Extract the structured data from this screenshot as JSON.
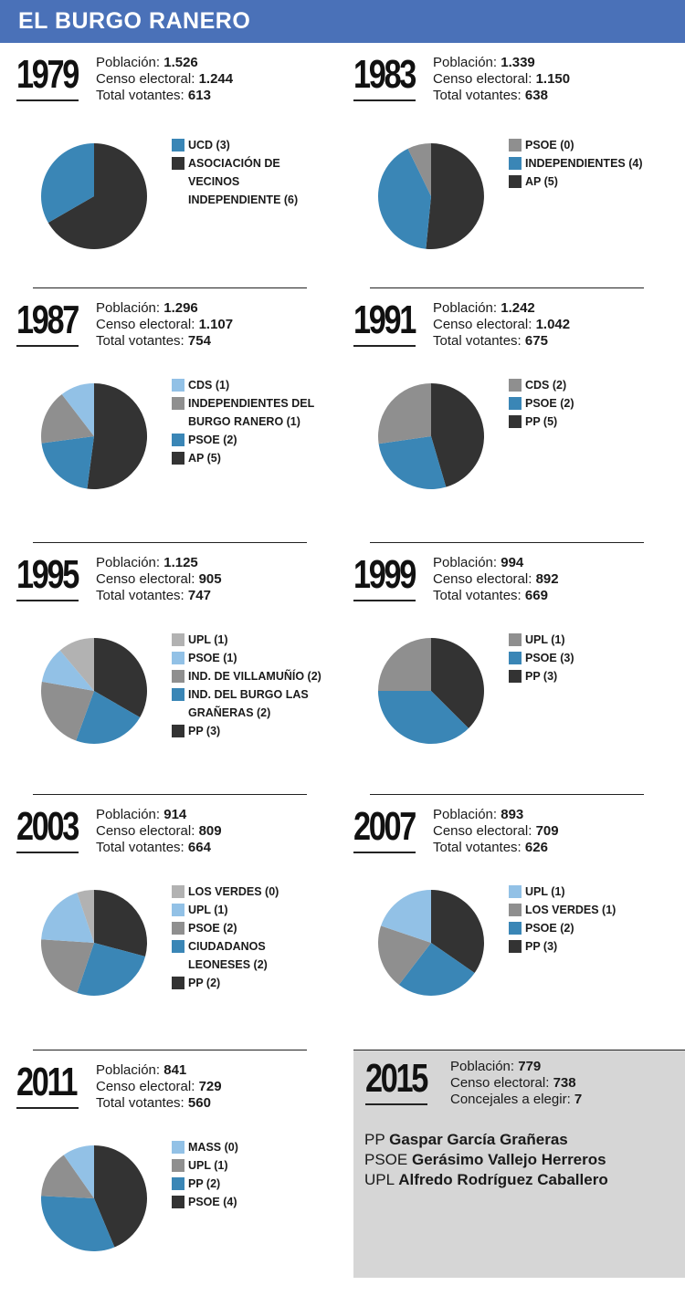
{
  "header": {
    "title": "EL BURGO RANERO"
  },
  "labels": {
    "poblacion": "Población:",
    "censo": "Censo electoral:",
    "votantes": "Total votantes:",
    "concejales": "Concejales a elegir:"
  },
  "colors": {
    "dark": "#333333",
    "blue": "#3a86b6",
    "gray": "#8f8f8f",
    "light_gray": "#b2b2b2",
    "light_blue": "#92c1e6",
    "header": "#4a71b8",
    "panel": "#d6d6d6"
  },
  "chart_data": [
    {
      "type": "pie",
      "year": "1979",
      "poblacion": "1.526",
      "censo": "1.244",
      "votantes": "613",
      "legend": [
        {
          "label": "UCD (3)",
          "color": "#3a86b6"
        },
        {
          "label": "ASOCIACIÓN DE VECINOS\n INDEPENDIENTE (6)",
          "color": "#333333"
        }
      ],
      "slices": [
        {
          "label": "ASOCIACIÓN DE VECINOS INDEPENDIENTE",
          "value": 6,
          "color": "#333333"
        },
        {
          "label": "UCD",
          "value": 3,
          "color": "#3a86b6"
        }
      ]
    },
    {
      "type": "pie",
      "year": "1983",
      "poblacion": "1.339",
      "censo": "1.150",
      "votantes": "638",
      "legend": [
        {
          "label": "PSOE (0)",
          "color": "#8f8f8f"
        },
        {
          "label": "INDEPENDIENTES (4)",
          "color": "#3a86b6"
        },
        {
          "label": "AP (5)",
          "color": "#333333"
        }
      ],
      "slices": [
        {
          "label": "AP",
          "value": 5,
          "color": "#333333"
        },
        {
          "label": "INDEPENDIENTES",
          "value": 4,
          "color": "#3a86b6"
        },
        {
          "label": "PSOE",
          "value": 0.7,
          "color": "#8f8f8f"
        }
      ]
    },
    {
      "type": "pie",
      "year": "1987",
      "poblacion": "1.296",
      "censo": "1.107",
      "votantes": "754",
      "legend": [
        {
          "label": "CDS (1)",
          "color": "#92c1e6"
        },
        {
          "label": "INDEPENDIENTES DEL\n BURGO RANERO (1)",
          "color": "#8f8f8f"
        },
        {
          "label": "PSOE (2)",
          "color": "#3a86b6"
        },
        {
          "label": "AP (5)",
          "color": "#333333"
        }
      ],
      "slices": [
        {
          "label": "AP",
          "value": 5,
          "color": "#333333"
        },
        {
          "label": "PSOE",
          "value": 2,
          "color": "#3a86b6"
        },
        {
          "label": "INDEPENDIENTES DEL BURGO RANERO",
          "value": 1.6,
          "color": "#8f8f8f"
        },
        {
          "label": "CDS",
          "value": 1,
          "color": "#92c1e6"
        }
      ]
    },
    {
      "type": "pie",
      "year": "1991",
      "poblacion": "1.242",
      "censo": "1.042",
      "votantes": "675",
      "legend": [
        {
          "label": "CDS (2)",
          "color": "#8f8f8f"
        },
        {
          "label": "PSOE (2)",
          "color": "#3a86b6"
        },
        {
          "label": "PP (5)",
          "color": "#333333"
        }
      ],
      "slices": [
        {
          "label": "PP",
          "value": 5,
          "color": "#333333"
        },
        {
          "label": "PSOE",
          "value": 3,
          "color": "#3a86b6"
        },
        {
          "label": "CDS",
          "value": 3,
          "color": "#8f8f8f"
        }
      ]
    },
    {
      "type": "pie",
      "year": "1995",
      "poblacion": "1.125",
      "censo": "905",
      "votantes": "747",
      "legend": [
        {
          "label": "UPL (1)",
          "color": "#b2b2b2"
        },
        {
          "label": "PSOE (1)",
          "color": "#92c1e6"
        },
        {
          "label": "IND. DE VILLAMUÑÍO (2)",
          "color": "#8f8f8f"
        },
        {
          "label": "IND. DEL BURGO LAS GRAÑERAS (2)",
          "color": "#3a86b6"
        },
        {
          "label": "PP (3)",
          "color": "#333333"
        }
      ],
      "slices": [
        {
          "label": "PP",
          "value": 3,
          "color": "#333333"
        },
        {
          "label": "IND. DEL BURGO LAS GRAÑERAS",
          "value": 2,
          "color": "#3a86b6"
        },
        {
          "label": "IND. DE VILLAMUÑÍO",
          "value": 2,
          "color": "#8f8f8f"
        },
        {
          "label": "PSOE",
          "value": 1,
          "color": "#92c1e6"
        },
        {
          "label": "UPL",
          "value": 1,
          "color": "#b2b2b2"
        }
      ]
    },
    {
      "type": "pie",
      "year": "1999",
      "poblacion": "994",
      "censo": "892",
      "votantes": "669",
      "legend": [
        {
          "label": "UPL (1)",
          "color": "#8f8f8f"
        },
        {
          "label": "PSOE (3)",
          "color": "#3a86b6"
        },
        {
          "label": "PP (3)",
          "color": "#333333"
        }
      ],
      "slices": [
        {
          "label": "PP",
          "value": 3,
          "color": "#333333"
        },
        {
          "label": "PSOE",
          "value": 3,
          "color": "#3a86b6"
        },
        {
          "label": "UPL",
          "value": 2,
          "color": "#8f8f8f"
        }
      ]
    },
    {
      "type": "pie",
      "year": "2003",
      "poblacion": "914",
      "censo": "809",
      "votantes": "664",
      "legend": [
        {
          "label": "LOS VERDES (0)",
          "color": "#b2b2b2"
        },
        {
          "label": "UPL (1)",
          "color": "#92c1e6"
        },
        {
          "label": "PSOE (2)",
          "color": "#8f8f8f"
        },
        {
          "label": "CIUDADANOS LEONESES (2)",
          "color": "#3a86b6"
        },
        {
          "label": "PP (2)",
          "color": "#333333"
        }
      ],
      "slices": [
        {
          "label": "PP",
          "value": 2.8,
          "color": "#333333"
        },
        {
          "label": "CIUDADANOS LEONESES",
          "value": 2.5,
          "color": "#3a86b6"
        },
        {
          "label": "PSOE",
          "value": 2,
          "color": "#8f8f8f"
        },
        {
          "label": "UPL",
          "value": 1.8,
          "color": "#92c1e6"
        },
        {
          "label": "LOS VERDES",
          "value": 0.5,
          "color": "#b2b2b2"
        }
      ]
    },
    {
      "type": "pie",
      "year": "2007",
      "poblacion": "893",
      "censo": "709",
      "votantes": "626",
      "legend": [
        {
          "label": "UPL (1)",
          "color": "#92c1e6"
        },
        {
          "label": "LOS VERDES (1)",
          "color": "#8f8f8f"
        },
        {
          "label": "PSOE (2)",
          "color": "#3a86b6"
        },
        {
          "label": "PP (3)",
          "color": "#333333"
        }
      ],
      "slices": [
        {
          "label": "PP",
          "value": 3.5,
          "color": "#333333"
        },
        {
          "label": "PSOE",
          "value": 2.6,
          "color": "#3a86b6"
        },
        {
          "label": "LOS VERDES",
          "value": 2,
          "color": "#8f8f8f"
        },
        {
          "label": "UPL",
          "value": 2,
          "color": "#92c1e6"
        }
      ]
    },
    {
      "type": "pie",
      "year": "2011",
      "poblacion": "841",
      "censo": "729",
      "votantes": "560",
      "legend": [
        {
          "label": "MASS (0)",
          "color": "#92c1e6"
        },
        {
          "label": "UPL (1)",
          "color": "#8f8f8f"
        },
        {
          "label": "PP (2)",
          "color": "#3a86b6"
        },
        {
          "label": "PSOE (4)",
          "color": "#333333"
        }
      ],
      "slices": [
        {
          "label": "PSOE",
          "value": 4.5,
          "color": "#333333"
        },
        {
          "label": "PP",
          "value": 3.3,
          "color": "#3a86b6"
        },
        {
          "label": "UPL",
          "value": 1.5,
          "color": "#8f8f8f"
        },
        {
          "label": "MASS",
          "value": 1,
          "color": "#92c1e6"
        }
      ]
    }
  ],
  "box_2015": {
    "year": "2015",
    "poblacion": "779",
    "censo": "738",
    "concejales": "7",
    "candidates": [
      {
        "party": "PP",
        "name": "Gaspar García Grañeras"
      },
      {
        "party": "PSOE",
        "name": "Gerásimo Vallejo Herreros"
      },
      {
        "party": "UPL",
        "name": "Alfredo Rodríguez Caballero"
      }
    ]
  }
}
